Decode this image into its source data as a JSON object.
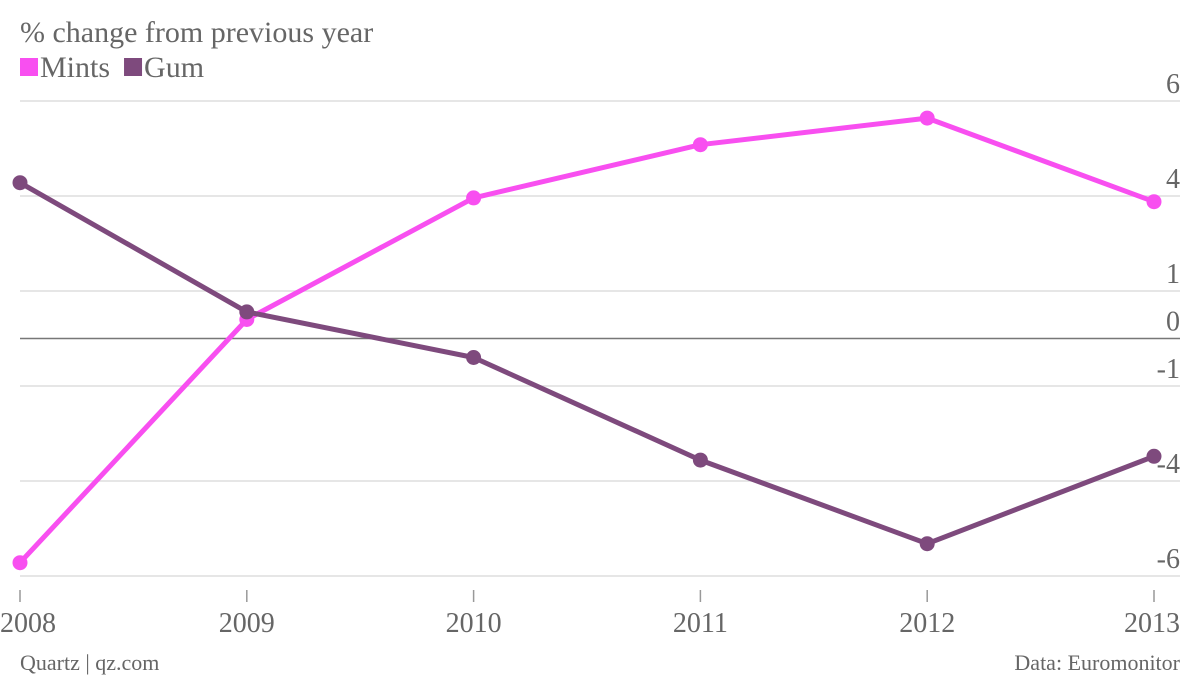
{
  "chart_data": {
    "type": "line",
    "title": "% change from previous year",
    "categories": [
      "2008",
      "2009",
      "2010",
      "2011",
      "2012",
      "2013"
    ],
    "series": [
      {
        "name": "Mints",
        "color": "#f84ff0",
        "values": [
          -5.9,
          0.5,
          3.7,
          5.1,
          5.8,
          3.6
        ]
      },
      {
        "name": "Gum",
        "color": "#7e4a7d",
        "values": [
          4.1,
          0.7,
          -0.5,
          -3.2,
          -5.4,
          -3.1
        ]
      }
    ],
    "ylim": [
      -6.25,
      6.25
    ],
    "yticks": [
      {
        "value": 6.25,
        "label": "6"
      },
      {
        "value": 3.75,
        "label": "4"
      },
      {
        "value": 1.25,
        "label": "1"
      },
      0,
      {
        "value": -1.25,
        "label": "-1"
      },
      {
        "value": -3.75,
        "label": "-4"
      },
      {
        "value": -6.25,
        "label": "-6"
      }
    ],
    "grid": true,
    "source": "Data: Euromonitor",
    "credit": "Quartz | qz.com"
  }
}
